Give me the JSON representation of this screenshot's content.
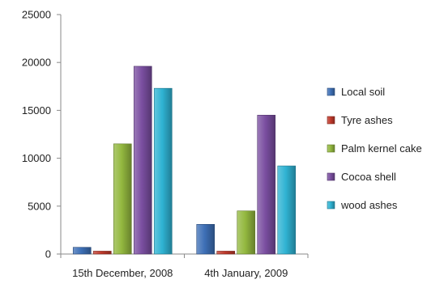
{
  "chart_data": {
    "type": "bar",
    "categories": [
      "15th December, 2008",
      "4th January, 2009"
    ],
    "series": [
      {
        "name": "Local soil",
        "values": [
          700,
          3100
        ],
        "color": "#3d6fb6"
      },
      {
        "name": "Tyre ashes",
        "values": [
          300,
          300
        ],
        "color": "#c0392b"
      },
      {
        "name": "Palm kernel cake",
        "values": [
          11500,
          4500
        ],
        "color": "#93b83f"
      },
      {
        "name": "Cocoa shell",
        "values": [
          19600,
          14500
        ],
        "color": "#7a4ea0"
      },
      {
        "name": "wood ashes",
        "values": [
          17300,
          9200
        ],
        "color": "#2fb3d3"
      }
    ],
    "ylim": [
      0,
      25000
    ],
    "yticks": [
      0,
      5000,
      10000,
      15000,
      20000,
      25000
    ],
    "grid": false,
    "legend": "right"
  }
}
